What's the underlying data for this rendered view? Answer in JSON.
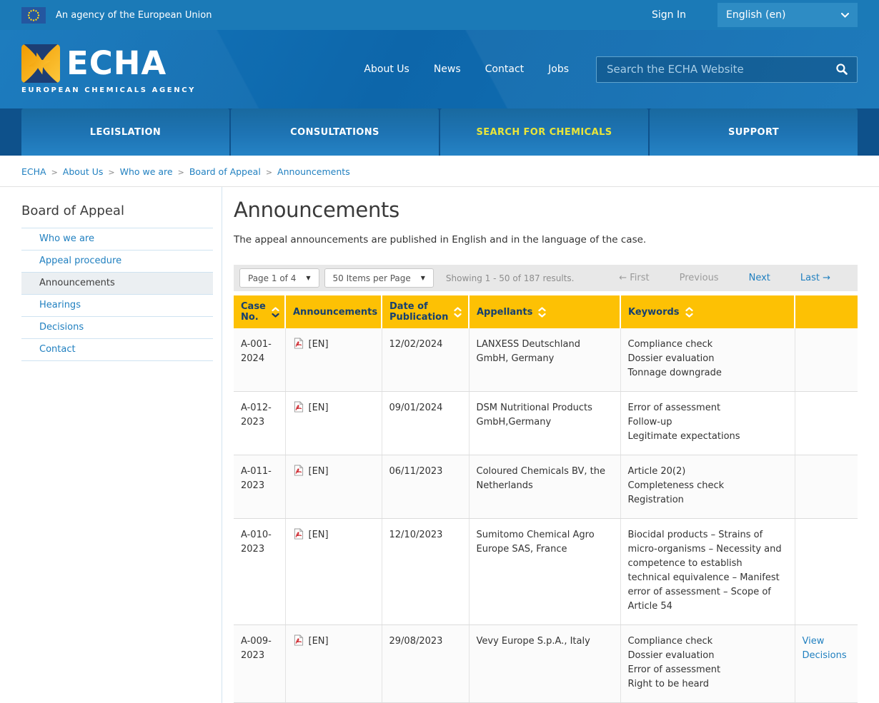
{
  "topbar": {
    "agency_text": "An agency of the European Union",
    "sign_in": "Sign In",
    "language": "English (en)"
  },
  "header": {
    "logo_title": "ECHA",
    "logo_subtitle": "EUROPEAN CHEMICALS AGENCY",
    "nav": [
      {
        "label": "About Us"
      },
      {
        "label": "News"
      },
      {
        "label": "Contact"
      },
      {
        "label": "Jobs"
      }
    ],
    "search_placeholder": "Search the ECHA Website"
  },
  "mainnav": {
    "items": [
      {
        "label": "LEGISLATION",
        "highlight": false
      },
      {
        "label": "CONSULTATIONS",
        "highlight": false
      },
      {
        "label": "SEARCH FOR CHEMICALS",
        "highlight": true
      },
      {
        "label": "SUPPORT",
        "highlight": false
      }
    ]
  },
  "breadcrumb": {
    "items": [
      "ECHA",
      "About Us",
      "Who we are",
      "Board of Appeal",
      "Announcements"
    ]
  },
  "sidebar": {
    "title": "Board of Appeal",
    "items": [
      {
        "label": "Who we are",
        "active": false
      },
      {
        "label": "Appeal procedure",
        "active": false
      },
      {
        "label": "Announcements",
        "active": true
      },
      {
        "label": "Hearings",
        "active": false
      },
      {
        "label": "Decisions",
        "active": false
      },
      {
        "label": "Contact",
        "active": false
      }
    ]
  },
  "page": {
    "title": "Announcements",
    "intro": "The appeal announcements are published in English and in the language of the case."
  },
  "pagination": {
    "page_select": "Page 1 of 4",
    "items_select": "50 Items per Page",
    "showing": "Showing 1 - 50 of 187 results.",
    "first": "← First",
    "previous": "Previous",
    "next": "Next",
    "last": "Last →",
    "first_disabled": true,
    "previous_disabled": true
  },
  "table": {
    "headers": [
      {
        "label": "Case No.",
        "sorted": true,
        "sortable": true
      },
      {
        "label": "Announcements",
        "sorted": false,
        "sortable": false
      },
      {
        "label": "Date of Publication",
        "sorted": false,
        "sortable": true
      },
      {
        "label": "Appellants",
        "sorted": false,
        "sortable": true
      },
      {
        "label": "Keywords",
        "sorted": false,
        "sortable": true
      },
      {
        "label": "",
        "sorted": false,
        "sortable": false
      }
    ],
    "rows": [
      {
        "case_no": "A-001-2024",
        "announcement": "[EN]",
        "date": "12/02/2024",
        "appellants": "LANXESS Deutschland GmbH, Germany",
        "keywords": [
          "Compliance check",
          "Dossier evaluation",
          "Tonnage downgrade"
        ],
        "link": ""
      },
      {
        "case_no": "A-012-2023",
        "announcement": "[EN]",
        "date": "09/01/2024",
        "appellants": "DSM Nutritional Products GmbH,Germany",
        "keywords": [
          "Error of assessment",
          "Follow-up",
          "Legitimate expectations"
        ],
        "link": ""
      },
      {
        "case_no": "A-011-2023",
        "announcement": "[EN]",
        "date": "06/11/2023",
        "appellants": "Coloured Chemicals BV, the Netherlands",
        "keywords": [
          "Article 20(2)",
          "Completeness check",
          "Registration"
        ],
        "link": ""
      },
      {
        "case_no": "A-010-2023",
        "announcement": "[EN]",
        "date": "12/10/2023",
        "appellants": "Sumitomo Chemical Agro Europe SAS, France",
        "keywords": [
          "Biocidal products – Strains of micro-organisms – Necessity and competence to establish technical equivalence – Manifest error of assessment – Scope of Article 54"
        ],
        "link": ""
      },
      {
        "case_no": "A-009-2023",
        "announcement": "[EN]",
        "date": "29/08/2023",
        "appellants": "Vevy Europe S.p.A., Italy",
        "keywords": [
          "Compliance check",
          "Dossier evaluation",
          "Error of assessment",
          "Right to be heard"
        ],
        "link": "View Decisions"
      }
    ]
  },
  "icons": {
    "dropdown_caret": "▼",
    "breadcrumb_separator": ">"
  },
  "colors": {
    "topbar_blue": "#1b7ab7",
    "header_blue": "#0f6cb0",
    "navbar_blue": "#0e518b",
    "tab_blue": "#1e74b4",
    "accent_yellow": "#fdc104",
    "tab_active_text": "#e9e53a",
    "link_blue": "#2180c0",
    "header_text_navy": "#16406f"
  }
}
